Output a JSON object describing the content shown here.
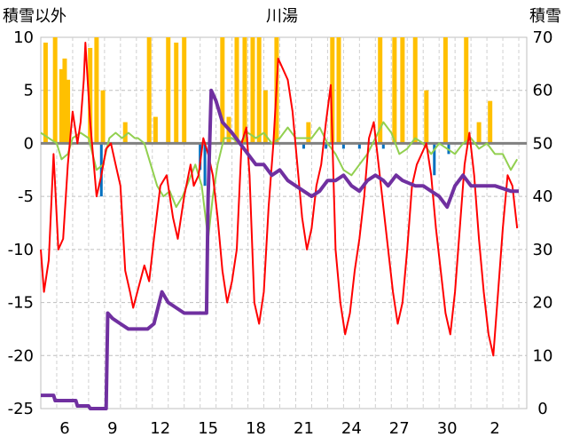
{
  "chart_data": {
    "type": "line",
    "title": "川湯",
    "y_left_label": "積雪以外",
    "y_right_label": "積雪",
    "ylim_left": [
      -25,
      10
    ],
    "ylim_right": [
      0,
      70
    ],
    "left_ticks": [
      10,
      5,
      0,
      -5,
      -10,
      -15,
      -20,
      -25
    ],
    "right_ticks": [
      70,
      60,
      50,
      40,
      30,
      20,
      10,
      0
    ],
    "x_range": [
      4.5,
      35.0
    ],
    "x_ticks": [
      {
        "day": 6,
        "label": "6"
      },
      {
        "day": 9,
        "label": "9"
      },
      {
        "day": 12,
        "label": "12"
      },
      {
        "day": 15,
        "label": "15"
      },
      {
        "day": 18,
        "label": "18"
      },
      {
        "day": 21,
        "label": "21"
      },
      {
        "day": 24,
        "label": "24"
      },
      {
        "day": 27,
        "label": "27"
      },
      {
        "day": 30,
        "label": "30"
      },
      {
        "day": 33,
        "label": "2"
      }
    ],
    "colors": {
      "temperature": "#ff0000",
      "humidity_dev": "#92d050",
      "snowfall": "#ffc000",
      "negative_bars": "#0070c0",
      "snow_depth": "#7030a0",
      "zero_line": "#808080"
    },
    "series": [
      {
        "key": "snowfall_bars",
        "axis": "left",
        "values": [
          [
            4.8,
            9.5
          ],
          [
            5.4,
            10
          ],
          [
            5.8,
            7
          ],
          [
            6.0,
            8
          ],
          [
            6.2,
            6
          ],
          [
            7.6,
            9
          ],
          [
            8.0,
            10
          ],
          [
            8.4,
            5
          ],
          [
            9.8,
            2
          ],
          [
            11.3,
            10
          ],
          [
            11.7,
            2.5
          ],
          [
            12.5,
            10
          ],
          [
            13.0,
            9.5
          ],
          [
            13.5,
            10
          ],
          [
            15.9,
            10
          ],
          [
            16.3,
            2.5
          ],
          [
            16.8,
            10
          ],
          [
            17.3,
            10
          ],
          [
            17.8,
            10
          ],
          [
            18.2,
            10
          ],
          [
            18.6,
            5
          ],
          [
            19.3,
            10
          ],
          [
            21.3,
            2
          ],
          [
            22.8,
            10
          ],
          [
            23.2,
            10
          ],
          [
            25.8,
            10
          ],
          [
            26.7,
            10
          ],
          [
            27.2,
            10
          ],
          [
            28.0,
            10
          ],
          [
            28.7,
            5
          ],
          [
            29.9,
            10
          ],
          [
            31.2,
            10
          ],
          [
            32.0,
            2
          ],
          [
            32.7,
            4
          ]
        ]
      },
      {
        "key": "negative_bars",
        "axis": "left",
        "values": [
          [
            8.3,
            -5
          ],
          [
            14.5,
            -2.5
          ],
          [
            14.8,
            -4
          ],
          [
            21.0,
            -0.5
          ],
          [
            22.4,
            -0.5
          ],
          [
            23.5,
            -0.5
          ],
          [
            24.5,
            -0.5
          ],
          [
            26.0,
            -0.5
          ],
          [
            29.2,
            -3
          ],
          [
            30.1,
            -1
          ]
        ]
      },
      {
        "key": "snow_depth",
        "axis": "right",
        "values": [
          [
            4.5,
            2.5
          ],
          [
            5.3,
            2.5
          ],
          [
            5.4,
            1.5
          ],
          [
            6.7,
            1.5
          ],
          [
            6.8,
            0.5
          ],
          [
            7.5,
            0.5
          ],
          [
            7.6,
            0
          ],
          [
            8.6,
            0
          ],
          [
            8.7,
            18
          ],
          [
            9.0,
            17
          ],
          [
            9.5,
            16
          ],
          [
            10.0,
            15
          ],
          [
            10.3,
            15
          ],
          [
            10.9,
            15
          ],
          [
            11.0,
            15
          ],
          [
            11.2,
            15
          ],
          [
            11.6,
            16
          ],
          [
            12.1,
            22
          ],
          [
            12.5,
            20
          ],
          [
            13.0,
            19
          ],
          [
            13.5,
            18
          ],
          [
            14.1,
            18
          ],
          [
            14.9,
            18
          ],
          [
            15.0,
            40
          ],
          [
            15.2,
            60
          ],
          [
            15.5,
            58
          ],
          [
            15.9,
            54
          ],
          [
            16.5,
            52
          ],
          [
            17.0,
            50
          ],
          [
            17.5,
            48
          ],
          [
            18.0,
            46
          ],
          [
            18.5,
            46
          ],
          [
            19.0,
            44
          ],
          [
            19.5,
            45
          ],
          [
            20.0,
            43
          ],
          [
            20.5,
            42
          ],
          [
            21.0,
            41
          ],
          [
            21.5,
            40
          ],
          [
            22.0,
            41
          ],
          [
            22.5,
            43
          ],
          [
            23.0,
            43
          ],
          [
            23.5,
            44
          ],
          [
            24.0,
            42
          ],
          [
            24.5,
            41
          ],
          [
            25.0,
            43
          ],
          [
            25.5,
            44
          ],
          [
            26.0,
            43
          ],
          [
            26.3,
            42
          ],
          [
            26.8,
            44
          ],
          [
            27.2,
            43
          ],
          [
            28.0,
            42
          ],
          [
            28.5,
            42
          ],
          [
            29.0,
            41
          ],
          [
            29.5,
            40
          ],
          [
            30.0,
            38
          ],
          [
            30.5,
            42
          ],
          [
            31.0,
            44
          ],
          [
            31.5,
            42
          ],
          [
            32.0,
            42
          ],
          [
            33.0,
            42
          ],
          [
            34.0,
            41
          ],
          [
            34.5,
            41
          ]
        ]
      },
      {
        "key": "humidity",
        "axis": "left",
        "values": [
          [
            4.5,
            1
          ],
          [
            5.0,
            0.5
          ],
          [
            5.5,
            0
          ],
          [
            5.8,
            -1.5
          ],
          [
            6.2,
            -1
          ],
          [
            6.5,
            0.5
          ],
          [
            7.0,
            1
          ],
          [
            7.5,
            0.5
          ],
          [
            8.0,
            -2.5
          ],
          [
            8.4,
            -2
          ],
          [
            8.8,
            0.5
          ],
          [
            9.2,
            1
          ],
          [
            9.6,
            0.5
          ],
          [
            10.0,
            1
          ],
          [
            10.4,
            0.5
          ],
          [
            10.6,
            0.5
          ],
          [
            11.0,
            0
          ],
          [
            11.4,
            -2
          ],
          [
            11.8,
            -4
          ],
          [
            12.2,
            -5
          ],
          [
            12.6,
            -4.5
          ],
          [
            13.0,
            -6
          ],
          [
            13.4,
            -5
          ],
          [
            13.8,
            -3.5
          ],
          [
            14.2,
            -2
          ],
          [
            14.6,
            -4
          ],
          [
            15.0,
            -9
          ],
          [
            15.3,
            -5
          ],
          [
            15.6,
            -2
          ],
          [
            16.0,
            0.5
          ],
          [
            16.5,
            0.5
          ],
          [
            17.0,
            0
          ],
          [
            17.5,
            1
          ],
          [
            18.0,
            0.5
          ],
          [
            18.5,
            1
          ],
          [
            19.0,
            0
          ],
          [
            19.5,
            0.5
          ],
          [
            20.0,
            1.5
          ],
          [
            20.5,
            0.5
          ],
          [
            21.0,
            0.5
          ],
          [
            21.5,
            0.5
          ],
          [
            22.0,
            1.5
          ],
          [
            22.5,
            0
          ],
          [
            23.0,
            -1
          ],
          [
            23.5,
            -2.5
          ],
          [
            24.0,
            -3
          ],
          [
            24.5,
            -2
          ],
          [
            25.0,
            -1
          ],
          [
            25.5,
            0.5
          ],
          [
            26.0,
            2
          ],
          [
            26.5,
            1
          ],
          [
            27.0,
            -1
          ],
          [
            27.5,
            -0.5
          ],
          [
            28.0,
            0.5
          ],
          [
            28.5,
            0
          ],
          [
            29.0,
            -1
          ],
          [
            29.5,
            0
          ],
          [
            30.0,
            -0.5
          ],
          [
            30.5,
            -1
          ],
          [
            31.0,
            0
          ],
          [
            31.5,
            0.5
          ],
          [
            32.0,
            -0.5
          ],
          [
            32.5,
            0
          ],
          [
            33.0,
            -1
          ],
          [
            33.5,
            -1
          ],
          [
            34.0,
            -2.5
          ],
          [
            34.4,
            -1.5
          ]
        ]
      },
      {
        "key": "temperature",
        "axis": "left",
        "values": [
          [
            4.5,
            -10
          ],
          [
            4.7,
            -14
          ],
          [
            5.0,
            -11
          ],
          [
            5.3,
            -1
          ],
          [
            5.6,
            -10
          ],
          [
            5.9,
            -9
          ],
          [
            6.2,
            -2
          ],
          [
            6.5,
            3
          ],
          [
            6.8,
            0
          ],
          [
            7.0,
            2
          ],
          [
            7.2,
            6
          ],
          [
            7.3,
            9.5
          ],
          [
            7.6,
            2
          ],
          [
            8.0,
            -5
          ],
          [
            8.3,
            -3
          ],
          [
            8.6,
            -0.5
          ],
          [
            8.9,
            0
          ],
          [
            9.2,
            -2
          ],
          [
            9.5,
            -4
          ],
          [
            9.8,
            -12
          ],
          [
            10.1,
            -14
          ],
          [
            10.3,
            -15.5
          ],
          [
            11.0,
            -11.5
          ],
          [
            11.3,
            -13
          ],
          [
            11.6,
            -9
          ],
          [
            12.0,
            -4
          ],
          [
            12.4,
            -3
          ],
          [
            12.8,
            -7
          ],
          [
            13.1,
            -9
          ],
          [
            13.5,
            -5
          ],
          [
            13.9,
            -2
          ],
          [
            14.1,
            -4
          ],
          [
            14.4,
            -3
          ],
          [
            14.7,
            0.5
          ],
          [
            15.0,
            -1
          ],
          [
            15.3,
            -3
          ],
          [
            15.6,
            -7
          ],
          [
            15.9,
            -12
          ],
          [
            16.2,
            -15
          ],
          [
            16.5,
            -13
          ],
          [
            16.8,
            -10
          ],
          [
            17.1,
            0
          ],
          [
            17.4,
            1.5
          ],
          [
            17.6,
            -3
          ],
          [
            17.9,
            -15
          ],
          [
            18.2,
            -17
          ],
          [
            18.5,
            -14
          ],
          [
            18.8,
            -6
          ],
          [
            19.1,
            0
          ],
          [
            19.4,
            8
          ],
          [
            19.7,
            7
          ],
          [
            20.0,
            6
          ],
          [
            20.3,
            3
          ],
          [
            20.6,
            -2
          ],
          [
            20.9,
            -7
          ],
          [
            21.2,
            -10
          ],
          [
            21.5,
            -8
          ],
          [
            21.8,
            -4
          ],
          [
            22.1,
            -2
          ],
          [
            22.4,
            2
          ],
          [
            22.7,
            5.5
          ],
          [
            23.0,
            -10
          ],
          [
            23.3,
            -15
          ],
          [
            23.6,
            -18
          ],
          [
            23.9,
            -16
          ],
          [
            24.2,
            -12
          ],
          [
            24.5,
            -9
          ],
          [
            24.8,
            -5
          ],
          [
            25.1,
            0.5
          ],
          [
            25.4,
            2
          ],
          [
            25.7,
            -2
          ],
          [
            26.0,
            -6
          ],
          [
            26.3,
            -10
          ],
          [
            26.6,
            -14
          ],
          [
            26.9,
            -17
          ],
          [
            27.2,
            -15
          ],
          [
            27.5,
            -10
          ],
          [
            27.8,
            -4
          ],
          [
            28.1,
            -2
          ],
          [
            28.4,
            -1
          ],
          [
            28.7,
            0
          ],
          [
            29.0,
            -3
          ],
          [
            29.3,
            -8
          ],
          [
            29.6,
            -12
          ],
          [
            29.9,
            -16
          ],
          [
            30.2,
            -18
          ],
          [
            30.5,
            -14
          ],
          [
            30.8,
            -8
          ],
          [
            31.1,
            -2
          ],
          [
            31.4,
            1
          ],
          [
            31.7,
            -3
          ],
          [
            32.0,
            -9
          ],
          [
            32.3,
            -14
          ],
          [
            32.6,
            -18
          ],
          [
            32.9,
            -20
          ],
          [
            33.2,
            -14
          ],
          [
            33.5,
            -8
          ],
          [
            33.8,
            -3
          ],
          [
            34.1,
            -4
          ],
          [
            34.4,
            -8
          ]
        ]
      }
    ]
  }
}
